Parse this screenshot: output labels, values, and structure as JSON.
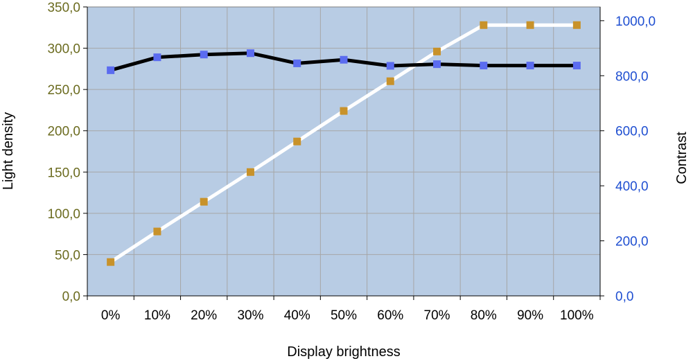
{
  "chart_data": {
    "type": "line",
    "categories": [
      "0%",
      "10%",
      "20%",
      "30%",
      "40%",
      "50%",
      "60%",
      "70%",
      "80%",
      "90%",
      "100%"
    ],
    "xlabel": "Display brightness",
    "ylabel": "Light density",
    "y2label": "Contrast",
    "ylim": [
      0,
      350
    ],
    "y2lim": [
      0,
      1050
    ],
    "yticks": [
      0,
      50,
      100,
      150,
      200,
      250,
      300,
      350
    ],
    "y2ticks": [
      0,
      200,
      400,
      600,
      800,
      1000
    ],
    "ytick_labels": [
      "0,0",
      "50,0",
      "100,0",
      "150,0",
      "200,0",
      "250,0",
      "300,0",
      "350,0"
    ],
    "y2tick_labels": [
      "0,0",
      "200,0",
      "400,0",
      "600,0",
      "800,0",
      "1000,0"
    ],
    "grid": true,
    "legend": "none",
    "series": [
      {
        "axis": "left",
        "values": [
          41,
          78,
          114,
          150,
          187,
          224,
          260,
          296,
          328,
          328,
          328
        ],
        "line_color": "#ffffff",
        "marker_color": "#c8922a"
      },
      {
        "axis": "right",
        "values": [
          820,
          867,
          877,
          882,
          845,
          858,
          836,
          842,
          837,
          837,
          837
        ],
        "line_color": "#000000",
        "marker_color": "#5b6cf0"
      }
    ],
    "colors": {
      "plot_background": "#b8cce4",
      "left_axis_text": "#6b6b1f",
      "right_axis_text": "#1f4fd1",
      "grid": "#a6a6a6"
    }
  }
}
